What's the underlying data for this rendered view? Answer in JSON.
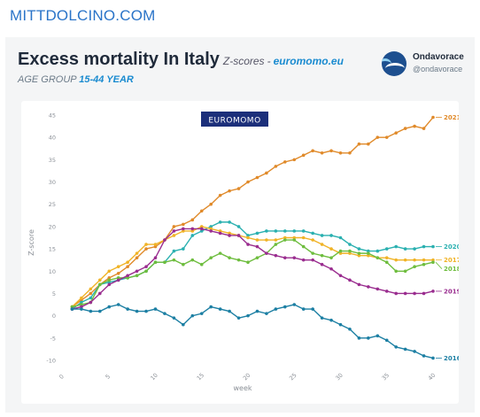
{
  "header": {
    "site": "MITTDOLCINO.COM"
  },
  "card": {
    "title": "Excess mortality In Italy",
    "title_suffix": "Z-scores",
    "title_dash": "-",
    "title_source": "euromomo.eu",
    "subtitle_prefix": "AGE GROUP",
    "subtitle_group": "15-44 YEAR",
    "brand_name": "Ondavorace",
    "brand_handle": "@ondavorace",
    "avatar_icon": "ondavorace-wave-logo-icon"
  },
  "chart_data": {
    "type": "line",
    "badge": "EUROMOMO",
    "xlabel": "week",
    "ylabel": "Z-score",
    "xlim": [
      0,
      40
    ],
    "ylim": [
      -10,
      45
    ],
    "xticks": [
      0,
      5,
      10,
      15,
      20,
      25,
      30,
      35,
      40
    ],
    "yticks": [
      -10,
      -5,
      0,
      5,
      10,
      15,
      20,
      25,
      30,
      35,
      40,
      45
    ],
    "grid": false,
    "legend": "right end labels",
    "x": [
      1,
      2,
      3,
      4,
      5,
      6,
      7,
      8,
      9,
      10,
      11,
      12,
      13,
      14,
      15,
      16,
      17,
      18,
      19,
      20,
      21,
      22,
      23,
      24,
      25,
      26,
      27,
      28,
      29,
      30,
      31,
      32,
      33,
      34,
      35,
      36,
      37,
      38,
      39,
      40
    ],
    "series": [
      {
        "name": "2021",
        "color": "#e08a2a",
        "values": [
          2,
          3.5,
          5,
          7,
          8.5,
          9.5,
          11,
          13,
          15,
          15.5,
          17,
          20,
          20.5,
          21.5,
          23.5,
          25,
          27,
          28,
          28.5,
          30,
          31,
          32,
          33.5,
          34.5,
          35,
          36,
          37,
          36.5,
          37,
          36.5,
          36.5,
          38.5,
          38.5,
          40,
          40,
          41,
          42,
          42.5,
          42,
          44.5
        ]
      },
      {
        "name": "2020",
        "color": "#2ab0b0",
        "values": [
          1.5,
          3,
          4,
          7,
          7.5,
          8,
          8.5,
          9,
          10,
          12,
          12,
          14.5,
          15,
          18,
          19,
          20,
          21,
          21,
          20,
          18,
          18.5,
          19,
          19,
          19,
          19,
          19,
          18.5,
          18,
          18,
          17.5,
          16,
          15,
          14.5,
          14.5,
          15,
          15.5,
          15,
          15,
          15.5,
          15.5
        ]
      },
      {
        "name": "2017",
        "color": "#f0b326",
        "values": [
          2,
          4,
          6,
          8,
          10,
          11,
          12,
          14,
          16,
          16,
          17,
          18,
          19,
          19,
          20,
          19.5,
          19,
          18.5,
          18,
          17.5,
          17,
          17,
          17,
          17.5,
          17.5,
          17.5,
          17,
          16,
          15,
          14,
          14,
          13.5,
          13.5,
          13,
          13,
          12.5,
          12.5,
          12.5,
          12.5,
          12.5
        ]
      },
      {
        "name": "2018",
        "color": "#6ebd3e",
        "values": [
          2,
          2.5,
          3,
          7,
          8,
          8.5,
          8.5,
          9,
          10,
          12,
          12,
          12.5,
          11.5,
          12.5,
          11.5,
          13,
          14,
          13,
          12.5,
          12,
          13,
          14,
          16,
          17,
          17,
          15.5,
          14,
          13.5,
          13,
          14.5,
          14.5,
          14,
          14,
          13,
          12,
          10,
          10,
          11,
          11.5,
          12
        ]
      },
      {
        "name": "2019",
        "color": "#9a2d8f",
        "values": [
          1.5,
          2,
          3,
          5,
          7,
          8,
          9,
          10,
          11,
          13,
          17,
          19,
          19.5,
          19.5,
          19.5,
          19,
          18.5,
          18,
          18,
          16,
          15.5,
          14,
          13.5,
          13,
          13,
          12.5,
          12.5,
          11.5,
          10.5,
          9,
          8,
          7,
          6.5,
          6,
          5.5,
          5,
          5,
          5,
          5,
          5.5
        ]
      },
      {
        "name": "2016",
        "color": "#1c7fa3",
        "values": [
          1.5,
          1.5,
          1,
          1,
          2,
          2.5,
          1.5,
          1,
          1,
          1.5,
          0.5,
          -0.5,
          -2,
          0,
          0.5,
          2,
          1.5,
          1,
          -0.5,
          0,
          1,
          0.5,
          1.5,
          2,
          2.5,
          1.5,
          1.5,
          -0.5,
          -1,
          -2,
          -3,
          -5,
          -5,
          -4.5,
          -5.5,
          -7,
          -7.5,
          -8,
          -9,
          -9.5
        ]
      }
    ]
  }
}
